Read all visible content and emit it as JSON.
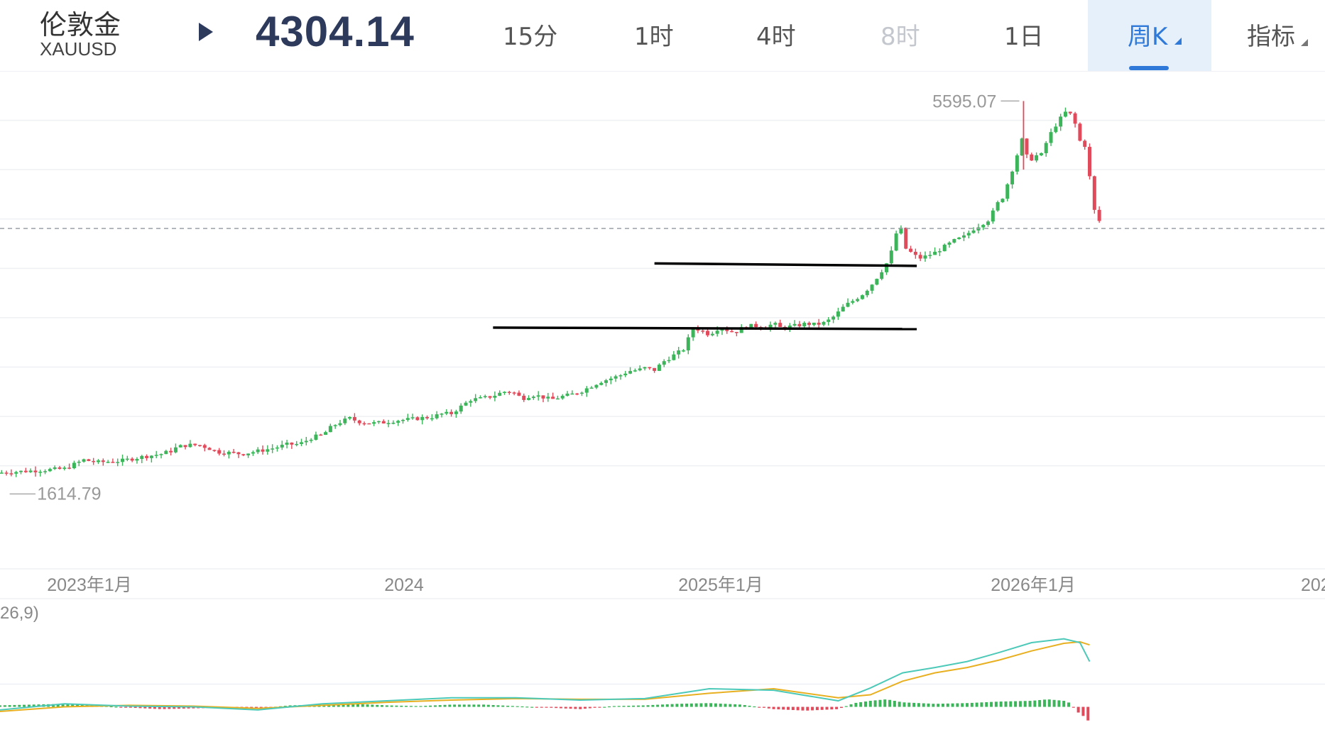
{
  "header": {
    "symbol_name": "伦敦金",
    "symbol_code": "XAUUSD",
    "price": "4304.14",
    "timeframes": [
      {
        "label": "15分",
        "state": "normal"
      },
      {
        "label": "1时",
        "state": "normal"
      },
      {
        "label": "4时",
        "state": "normal"
      },
      {
        "label": "8时",
        "state": "disabled"
      },
      {
        "label": "1日",
        "state": "normal"
      },
      {
        "label": "周K",
        "state": "active"
      }
    ],
    "indicator_label": "指标",
    "colors": {
      "accent": "#2f7ad9",
      "price": "#2d3a5c",
      "up": "#3cb55a",
      "down": "#e04a5a"
    }
  },
  "chart_data": {
    "type": "candlestick",
    "interval": "weekly",
    "max_label": "5595.07",
    "min_label": "1614.79",
    "x_ticks": [
      "2023年1月",
      "2024",
      "2025年1月",
      "2026年1月",
      "202"
    ],
    "current_price": 4304.14,
    "ylim": [
      1560,
      5900
    ],
    "grid_y": [
      1900,
      2400,
      2900,
      3400,
      3900,
      4400,
      4900,
      5400
    ],
    "horizontal_lines": [
      {
        "y_start": 3950,
        "y_end": 3925,
        "x_start": "2025-05",
        "x_end": "2026-06"
      },
      {
        "y_start": 3300,
        "y_end": 3285,
        "x_start": "2024-09",
        "x_end": "2026-06"
      }
    ],
    "close_path": [
      [
        0,
        1830
      ],
      [
        20,
        1850
      ],
      [
        40,
        1870
      ],
      [
        52,
        1960
      ],
      [
        60,
        1935
      ],
      [
        75,
        1950
      ],
      [
        88,
        1990
      ],
      [
        100,
        2020
      ],
      [
        106,
        2050
      ],
      [
        110,
        2090
      ],
      [
        116,
        2110
      ],
      [
        124,
        2110
      ],
      [
        130,
        2075
      ],
      [
        135,
        2040
      ],
      [
        144,
        2030
      ],
      [
        150,
        2020
      ],
      [
        162,
        2055
      ],
      [
        170,
        2080
      ],
      [
        178,
        2115
      ],
      [
        186,
        2120
      ],
      [
        194,
        2190
      ],
      [
        200,
        2210
      ],
      [
        206,
        2300
      ],
      [
        212,
        2350
      ],
      [
        217,
        2380
      ],
      [
        222,
        2350
      ],
      [
        230,
        2330
      ],
      [
        238,
        2340
      ],
      [
        246,
        2360
      ],
      [
        254,
        2370
      ],
      [
        262,
        2385
      ],
      [
        268,
        2395
      ],
      [
        274,
        2425
      ],
      [
        280,
        2430
      ],
      [
        286,
        2500
      ],
      [
        292,
        2570
      ],
      [
        298,
        2580
      ],
      [
        304,
        2600
      ],
      [
        308,
        2620
      ],
      [
        312,
        2650
      ],
      [
        318,
        2650
      ],
      [
        324,
        2580
      ],
      [
        330,
        2620
      ],
      [
        336,
        2600
      ],
      [
        342,
        2570
      ],
      [
        348,
        2600
      ],
      [
        354,
        2620
      ],
      [
        360,
        2650
      ],
      [
        366,
        2700
      ],
      [
        372,
        2750
      ],
      [
        378,
        2780
      ],
      [
        384,
        2810
      ],
      [
        390,
        2860
      ],
      [
        396,
        2870
      ],
      [
        400,
        2890
      ],
      [
        406,
        2870
      ],
      [
        412,
        2960
      ],
      [
        418,
        3020
      ],
      [
        424,
        3080
      ],
      [
        430,
        3290
      ],
      [
        434,
        3280
      ],
      [
        440,
        3230
      ],
      [
        446,
        3300
      ],
      [
        450,
        3280
      ],
      [
        456,
        3250
      ],
      [
        462,
        3310
      ],
      [
        468,
        3320
      ],
      [
        474,
        3300
      ],
      [
        480,
        3340
      ],
      [
        484,
        3300
      ],
      [
        490,
        3310
      ],
      [
        494,
        3320
      ],
      [
        500,
        3340
      ],
      [
        506,
        3330
      ],
      [
        512,
        3350
      ],
      [
        518,
        3420
      ],
      [
        524,
        3520
      ],
      [
        530,
        3580
      ],
      [
        536,
        3650
      ],
      [
        542,
        3760
      ],
      [
        548,
        3900
      ],
      [
        552,
        4000
      ],
      [
        555,
        4200
      ],
      [
        558,
        4360
      ],
      [
        562,
        4100
      ],
      [
        566,
        4050
      ],
      [
        570,
        4000
      ],
      [
        574,
        4020
      ],
      [
        580,
        4060
      ],
      [
        586,
        4120
      ],
      [
        592,
        4180
      ],
      [
        598,
        4220
      ],
      [
        604,
        4300
      ],
      [
        610,
        4360
      ],
      [
        614,
        4400
      ],
      [
        618,
        4540
      ],
      [
        622,
        4620
      ],
      [
        626,
        4800
      ],
      [
        630,
        5000
      ],
      [
        634,
        5200
      ],
      [
        638,
        4980
      ],
      [
        642,
        5040
      ],
      [
        646,
        5050
      ],
      [
        650,
        5210
      ],
      [
        654,
        5330
      ],
      [
        658,
        5420
      ],
      [
        662,
        5500
      ],
      [
        666,
        5420
      ],
      [
        670,
        5190
      ],
      [
        674,
        5130
      ],
      [
        678,
        4520
      ],
      [
        682,
        4380
      ],
      [
        684,
        4304
      ]
    ],
    "indicator": {
      "name": "MACD",
      "label": "26,9)",
      "dif_color": "#4cc9b8",
      "dea_color": "#e8b020",
      "dif": [
        [
          0,
          -4
        ],
        [
          40,
          4
        ],
        [
          80,
          1
        ],
        [
          120,
          0
        ],
        [
          160,
          -4
        ],
        [
          200,
          4
        ],
        [
          240,
          8
        ],
        [
          280,
          12
        ],
        [
          320,
          12
        ],
        [
          360,
          9
        ],
        [
          400,
          11
        ],
        [
          440,
          24
        ],
        [
          480,
          22
        ],
        [
          520,
          8
        ],
        [
          540,
          25
        ],
        [
          560,
          45
        ],
        [
          580,
          52
        ],
        [
          600,
          60
        ],
        [
          620,
          72
        ],
        [
          640,
          85
        ],
        [
          660,
          90
        ],
        [
          670,
          85
        ],
        [
          676,
          60
        ]
      ],
      "dea": [
        [
          0,
          -6
        ],
        [
          40,
          0
        ],
        [
          80,
          2
        ],
        [
          120,
          1
        ],
        [
          160,
          -2
        ],
        [
          200,
          2
        ],
        [
          240,
          6
        ],
        [
          280,
          9
        ],
        [
          320,
          11
        ],
        [
          360,
          10
        ],
        [
          400,
          10
        ],
        [
          440,
          18
        ],
        [
          480,
          24
        ],
        [
          520,
          12
        ],
        [
          540,
          16
        ],
        [
          560,
          34
        ],
        [
          580,
          45
        ],
        [
          600,
          52
        ],
        [
          620,
          62
        ],
        [
          640,
          74
        ],
        [
          660,
          84
        ],
        [
          670,
          86
        ],
        [
          676,
          82
        ]
      ],
      "hist": [
        [
          0,
          2
        ],
        [
          20,
          3
        ],
        [
          40,
          4
        ],
        [
          60,
          2
        ],
        [
          80,
          -1
        ],
        [
          100,
          -3
        ],
        [
          120,
          -2
        ],
        [
          140,
          -1
        ],
        [
          160,
          -2
        ],
        [
          180,
          2
        ],
        [
          200,
          3
        ],
        [
          220,
          4
        ],
        [
          240,
          2
        ],
        [
          260,
          1
        ],
        [
          280,
          3
        ],
        [
          300,
          3
        ],
        [
          320,
          1
        ],
        [
          340,
          -1
        ],
        [
          360,
          -3
        ],
        [
          380,
          1
        ],
        [
          400,
          2
        ],
        [
          420,
          4
        ],
        [
          440,
          5
        ],
        [
          460,
          3
        ],
        [
          480,
          -3
        ],
        [
          500,
          -5
        ],
        [
          520,
          -3
        ],
        [
          530,
          5
        ],
        [
          540,
          8
        ],
        [
          550,
          10
        ],
        [
          560,
          6
        ],
        [
          580,
          4
        ],
        [
          600,
          5
        ],
        [
          620,
          7
        ],
        [
          640,
          8
        ],
        [
          650,
          10
        ],
        [
          660,
          8
        ],
        [
          664,
          5
        ],
        [
          668,
          -6
        ],
        [
          672,
          -12
        ],
        [
          676,
          -20
        ]
      ],
      "ylim": [
        -22,
        100
      ]
    }
  }
}
